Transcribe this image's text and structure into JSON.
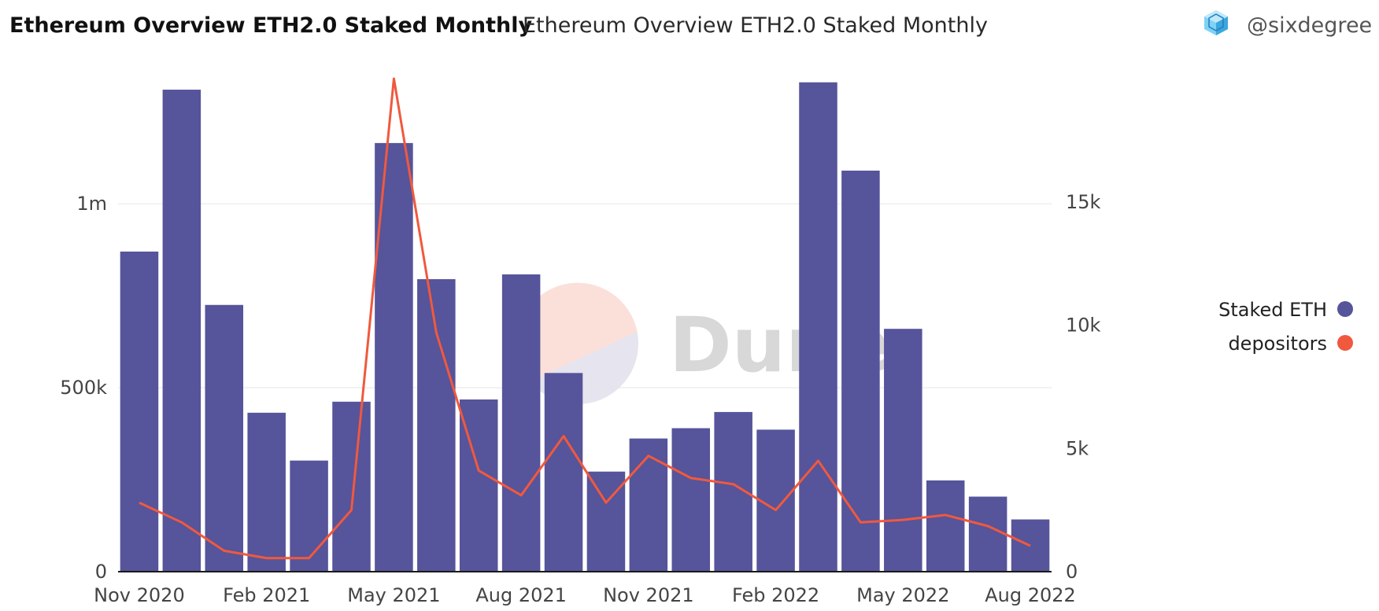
{
  "header": {
    "title": "Ethereum Overview ETH2.0 Staked Monthly",
    "subtitle": "Ethereum Overview ETH2.0 Staked Monthly",
    "author": "@sixdegree"
  },
  "watermark": {
    "text": "Dune"
  },
  "colors": {
    "bar": "#56549a",
    "line": "#f0593e",
    "grid": "#e6e6e6",
    "axis": "#1a1a1a"
  },
  "chart_data": {
    "type": "bar",
    "categories": [
      "Nov 2020",
      "Dec 2020",
      "Jan 2021",
      "Feb 2021",
      "Mar 2021",
      "Apr 2021",
      "May 2021",
      "Jun 2021",
      "Jul 2021",
      "Aug 2021",
      "Sep 2021",
      "Oct 2021",
      "Nov 2021",
      "Dec 2021",
      "Jan 2022",
      "Feb 2022",
      "Mar 2022",
      "Apr 2022",
      "May 2022",
      "Jun 2022",
      "Jul 2022",
      "Aug 2022"
    ],
    "x_tick_labels": [
      "Nov 2020",
      "Feb 2021",
      "May 2021",
      "Aug 2021",
      "Nov 2021",
      "Feb 2022",
      "May 2022",
      "Aug 2022"
    ],
    "x_tick_indices": [
      0,
      3,
      6,
      9,
      12,
      15,
      18,
      21
    ],
    "series": [
      {
        "name": "Staked ETH",
        "type": "bar",
        "axis": "left",
        "values": [
          870000,
          1310000,
          725000,
          432000,
          302000,
          462000,
          1165000,
          795000,
          468000,
          808000,
          540000,
          272000,
          362000,
          390000,
          434000,
          386000,
          1330000,
          1090000,
          660000,
          248000,
          204000,
          142000
        ]
      },
      {
        "name": "depositors",
        "type": "line",
        "axis": "right",
        "values": [
          2800,
          2000,
          850,
          550,
          550,
          2500,
          20000,
          9700,
          4100,
          3100,
          5500,
          2800,
          4700,
          3800,
          3550,
          2500,
          4500,
          2000,
          2100,
          2300,
          1850,
          1050
        ]
      }
    ],
    "y_left": {
      "ylim": [
        0,
        1340000
      ],
      "ticks": [
        0,
        500000,
        1000000
      ],
      "tick_labels": [
        "0",
        "500k",
        "1m"
      ]
    },
    "y_right": {
      "ylim": [
        0,
        20000
      ],
      "ticks": [
        0,
        5000,
        10000,
        15000
      ],
      "tick_labels": [
        "0",
        "5k",
        "10k",
        "15k"
      ]
    },
    "grid": true,
    "legend_placement": "right"
  }
}
